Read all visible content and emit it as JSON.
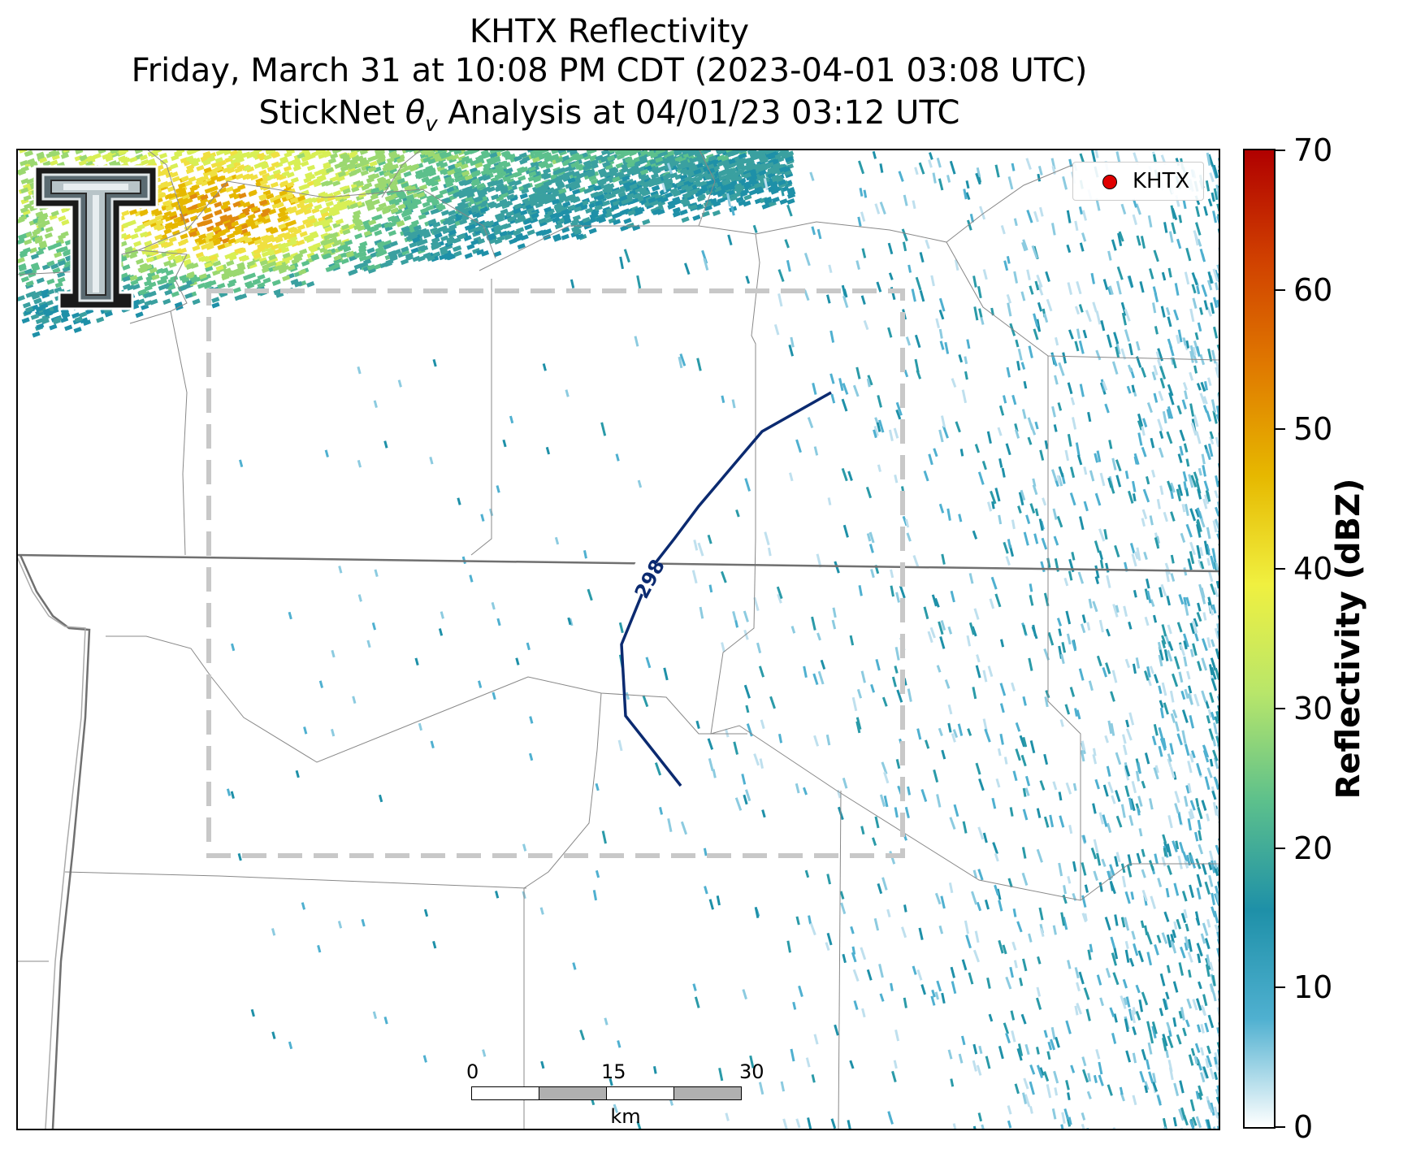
{
  "title": {
    "line1": "KHTX Reflectivity",
    "line2": "Friday, March 31 at 10:08 PM CDT (2023-04-01 03:08 UTC)",
    "line3_prefix": "StickNet ",
    "line3_theta": "θ",
    "line3_sub": "v",
    "line3_suffix": " Analysis at 04/01/23 03:12 UTC"
  },
  "legend": {
    "marker_color": "#e00000",
    "label": "KHTX"
  },
  "contour": {
    "label": "298",
    "color": "#0b2a70"
  },
  "analysis_box": {
    "style": "dashed",
    "color": "#c8c8c8"
  },
  "scalebar": {
    "ticks": [
      "0",
      "15",
      "30"
    ],
    "unit": "km"
  },
  "colorbar": {
    "title": "Reflectivity (dBZ)",
    "ticks": [
      "0",
      "10",
      "20",
      "30",
      "40",
      "50",
      "60",
      "70"
    ],
    "range": [
      0,
      70
    ],
    "colors": [
      "#ffffff",
      "#4fb0d0",
      "#1e90a8",
      "#5cc08c",
      "#b8e66a",
      "#f0f040",
      "#e6b800",
      "#e07a00",
      "#d04000",
      "#b00000"
    ]
  },
  "logo": {
    "name": "texas-tech-double-t-logo"
  }
}
